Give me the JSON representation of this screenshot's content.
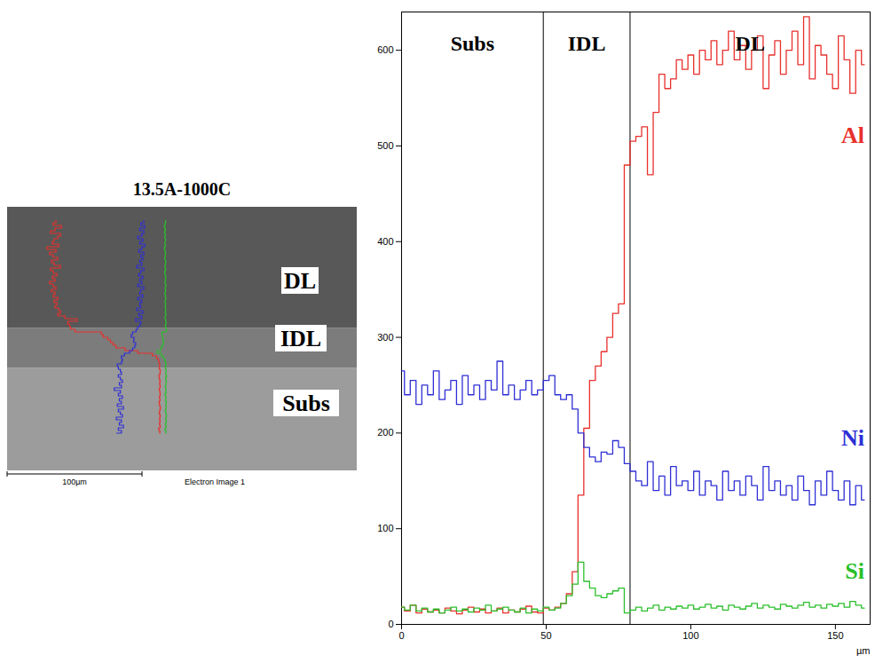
{
  "chart_data": {
    "type": "line",
    "x_label": "µm",
    "xlim": [
      0,
      162
    ],
    "xticks": [
      0,
      50,
      100,
      150
    ],
    "ylim": [
      0,
      640
    ],
    "yticks": [
      0,
      100,
      200,
      300,
      400,
      500,
      600
    ],
    "x": [
      0,
      2,
      4,
      6,
      8,
      10,
      12,
      14,
      16,
      18,
      20,
      22,
      24,
      26,
      28,
      30,
      32,
      34,
      36,
      38,
      40,
      42,
      44,
      46,
      48,
      50,
      52,
      54,
      56,
      58,
      60,
      62,
      64,
      66,
      68,
      70,
      72,
      74,
      76,
      78,
      80,
      82,
      84,
      86,
      88,
      90,
      92,
      94,
      96,
      98,
      100,
      102,
      104,
      106,
      108,
      110,
      112,
      114,
      116,
      118,
      120,
      122,
      124,
      126,
      128,
      130,
      132,
      134,
      136,
      138,
      140,
      142,
      144,
      146,
      148,
      150,
      152,
      154,
      156,
      158,
      160
    ],
    "series": [
      {
        "name": "Al",
        "color": "#e8302c",
        "values": [
          18,
          14,
          20,
          12,
          16,
          13,
          15,
          12,
          17,
          14,
          11,
          15,
          18,
          13,
          16,
          12,
          14,
          17,
          12,
          15,
          13,
          16,
          19,
          13,
          12,
          17,
          15,
          18,
          22,
          32,
          55,
          135,
          205,
          255,
          270,
          285,
          300,
          325,
          335,
          480,
          505,
          510,
          520,
          470,
          535,
          575,
          560,
          570,
          590,
          580,
          595,
          575,
          600,
          590,
          610,
          585,
          600,
          620,
          590,
          605,
          580,
          600,
          615,
          560,
          595,
          610,
          575,
          600,
          620,
          585,
          635,
          570,
          605,
          595,
          575,
          560,
          615,
          590,
          555,
          600,
          585
        ]
      },
      {
        "name": "Ni",
        "color": "#2f2fd6",
        "values": [
          265,
          240,
          255,
          230,
          250,
          240,
          265,
          235,
          245,
          255,
          230,
          260,
          240,
          250,
          235,
          255,
          245,
          275,
          240,
          250,
          235,
          245,
          255,
          240,
          245,
          255,
          260,
          240,
          235,
          240,
          225,
          200,
          185,
          175,
          170,
          180,
          178,
          192,
          185,
          168,
          160,
          150,
          145,
          170,
          140,
          155,
          135,
          165,
          145,
          150,
          140,
          160,
          135,
          150,
          145,
          130,
          160,
          140,
          150,
          135,
          155,
          145,
          130,
          165,
          140,
          150,
          135,
          145,
          130,
          155,
          140,
          125,
          150,
          135,
          160,
          140,
          130,
          150,
          125,
          145,
          130
        ]
      },
      {
        "name": "Si",
        "color": "#2bbf2b",
        "values": [
          18,
          15,
          20,
          14,
          17,
          13,
          16,
          12,
          15,
          18,
          14,
          16,
          13,
          17,
          15,
          20,
          14,
          16,
          18,
          15,
          13,
          17,
          12,
          16,
          14,
          18,
          15,
          17,
          22,
          30,
          42,
          65,
          45,
          38,
          30,
          28,
          32,
          35,
          38,
          12,
          15,
          18,
          14,
          17,
          20,
          15,
          18,
          16,
          19,
          17,
          20,
          16,
          18,
          21,
          17,
          19,
          15,
          20,
          18,
          16,
          19,
          22,
          17,
          20,
          18,
          16,
          21,
          19,
          17,
          20,
          23,
          18,
          20,
          17,
          21,
          19,
          22,
          18,
          24,
          20,
          17
        ]
      }
    ],
    "regions": [
      {
        "label": "Subs",
        "start": 0,
        "end": 49
      },
      {
        "label": "IDL",
        "start": 49,
        "end": 79
      },
      {
        "label": "DL",
        "start": 79,
        "end": 162
      }
    ],
    "image_panel": {
      "title": "13.5A-1000C",
      "labels": [
        "DL",
        "IDL",
        "Subs"
      ],
      "scale_bar": "100µm",
      "caption": "Electron Image 1"
    }
  }
}
